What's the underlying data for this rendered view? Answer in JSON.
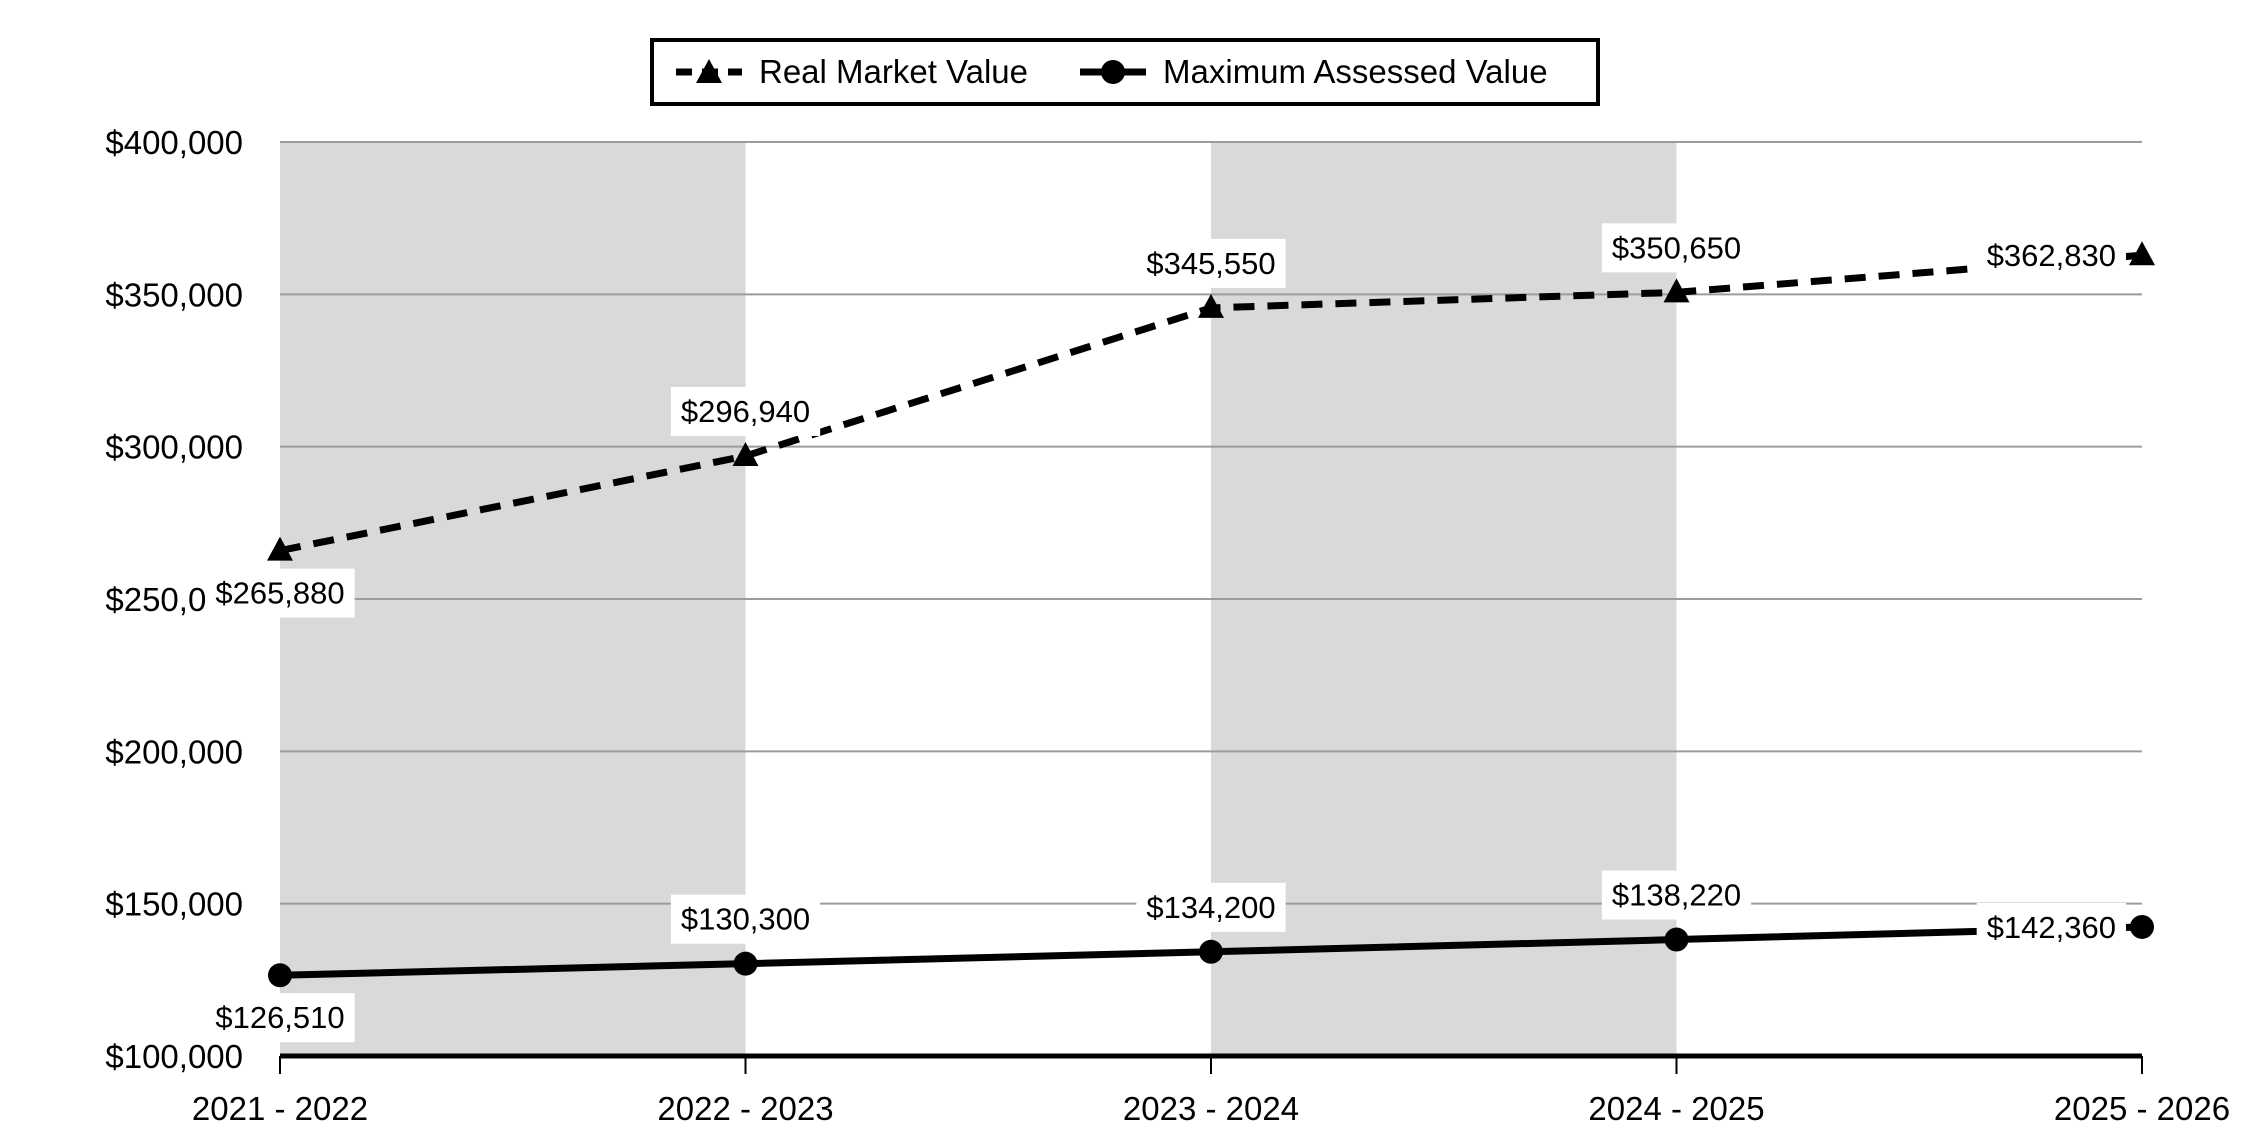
{
  "chart_data": {
    "type": "line",
    "title": "",
    "xlabel": "",
    "ylabel": "",
    "categories": [
      "2021 - 2022",
      "2022 - 2023",
      "2023 - 2024",
      "2024 - 2025",
      "2025 - 2026"
    ],
    "series": [
      {
        "name": "Real Market Value",
        "values": [
          265880,
          296940,
          345550,
          350650,
          362830
        ],
        "labels": [
          "$265,880",
          "$296,940",
          "$345,550",
          "$350,650",
          "$362,830"
        ],
        "label_placements": [
          "below",
          "above",
          "above",
          "above",
          "left"
        ],
        "marker": "triangle",
        "line_style": "dashed"
      },
      {
        "name": "Maximum Assessed Value",
        "values": [
          126510,
          130300,
          134200,
          138220,
          142360
        ],
        "labels": [
          "$126,510",
          "$130,300",
          "$134,200",
          "$138,220",
          "$142,360"
        ],
        "label_placements": [
          "below",
          "above",
          "above",
          "above",
          "left"
        ],
        "marker": "circle",
        "line_style": "solid"
      }
    ],
    "y_axis": {
      "min": 100000,
      "max": 400000,
      "step": 50000,
      "tick_labels_top_to_bottom": [
        "$400,000",
        "$350,000",
        "$300,000",
        "$250,000",
        "$200,000",
        "$150,000",
        "$100,000"
      ]
    },
    "grid": "horizontal",
    "legend_position": "top-center",
    "plot_bands": {
      "description": "alternating vertical background bands between category ticks, gray on intervals 1 and 3",
      "gray_intervals": [
        [
          0,
          1
        ],
        [
          2,
          3
        ]
      ]
    },
    "colors": {
      "series_line": "#000000",
      "band_fill": "#d9d9d9",
      "gridline": "#9c9c9c",
      "axis_line": "#000000",
      "data_label_bg": "#ffffff",
      "text": "#000000",
      "background": "#ffffff"
    }
  }
}
